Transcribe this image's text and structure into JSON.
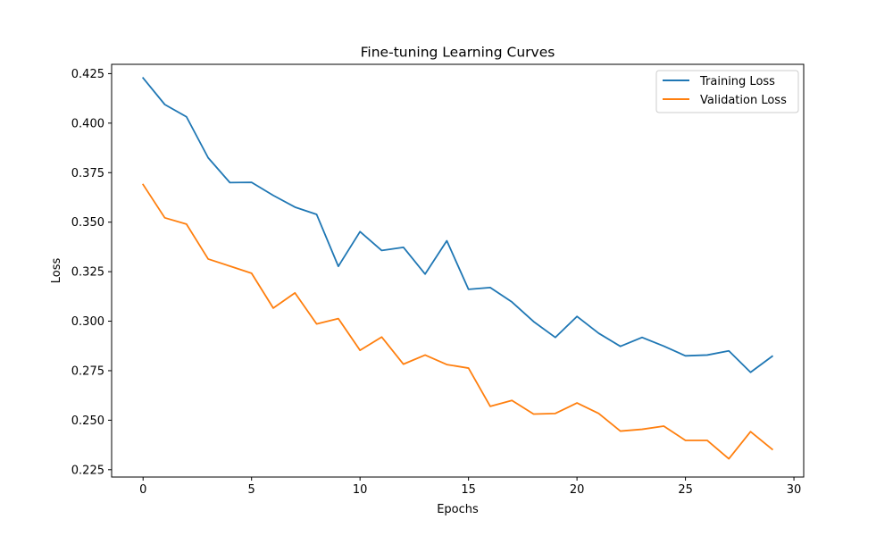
{
  "chart_data": {
    "type": "line",
    "title": "Fine-tuning Learning Curves",
    "xlabel": "Epochs",
    "ylabel": "Loss",
    "xlim": [
      -1.45,
      30.45
    ],
    "ylim": [
      0.2213,
      0.4297
    ],
    "xticks": [
      0,
      5,
      10,
      15,
      20,
      25,
      30
    ],
    "yticks": [
      0.225,
      0.25,
      0.275,
      0.3,
      0.325,
      0.35,
      0.375,
      0.4,
      0.425
    ],
    "ytick_labels": [
      "0.225",
      "0.250",
      "0.275",
      "0.300",
      "0.325",
      "0.350",
      "0.375",
      "0.400",
      "0.425"
    ],
    "grid": false,
    "legend_position": "top-right",
    "x": [
      0,
      1,
      2,
      3,
      4,
      5,
      6,
      7,
      8,
      9,
      10,
      11,
      12,
      13,
      14,
      15,
      16,
      17,
      18,
      19,
      20,
      21,
      22,
      23,
      24,
      25,
      26,
      27,
      28,
      29
    ],
    "series": [
      {
        "name": "Training Loss",
        "color": "#1f77b4",
        "values": [
          0.4228,
          0.4094,
          0.4032,
          0.3825,
          0.37,
          0.3701,
          0.3635,
          0.3576,
          0.3539,
          0.3277,
          0.3452,
          0.3357,
          0.3373,
          0.3238,
          0.3406,
          0.3161,
          0.317,
          0.3097,
          0.2998,
          0.2918,
          0.3024,
          0.2939,
          0.2873,
          0.2918,
          0.2874,
          0.2825,
          0.2829,
          0.285,
          0.2742,
          0.2823
        ]
      },
      {
        "name": "Validation Loss",
        "color": "#ff7f0e",
        "values": [
          0.369,
          0.3522,
          0.349,
          0.3314,
          0.3278,
          0.3242,
          0.3066,
          0.3143,
          0.2986,
          0.3013,
          0.2853,
          0.292,
          0.2783,
          0.2829,
          0.2781,
          0.2763,
          0.257,
          0.26,
          0.2531,
          0.2534,
          0.2587,
          0.2534,
          0.2445,
          0.2454,
          0.247,
          0.2398,
          0.2398,
          0.2305,
          0.2442,
          0.2353
        ]
      }
    ]
  }
}
